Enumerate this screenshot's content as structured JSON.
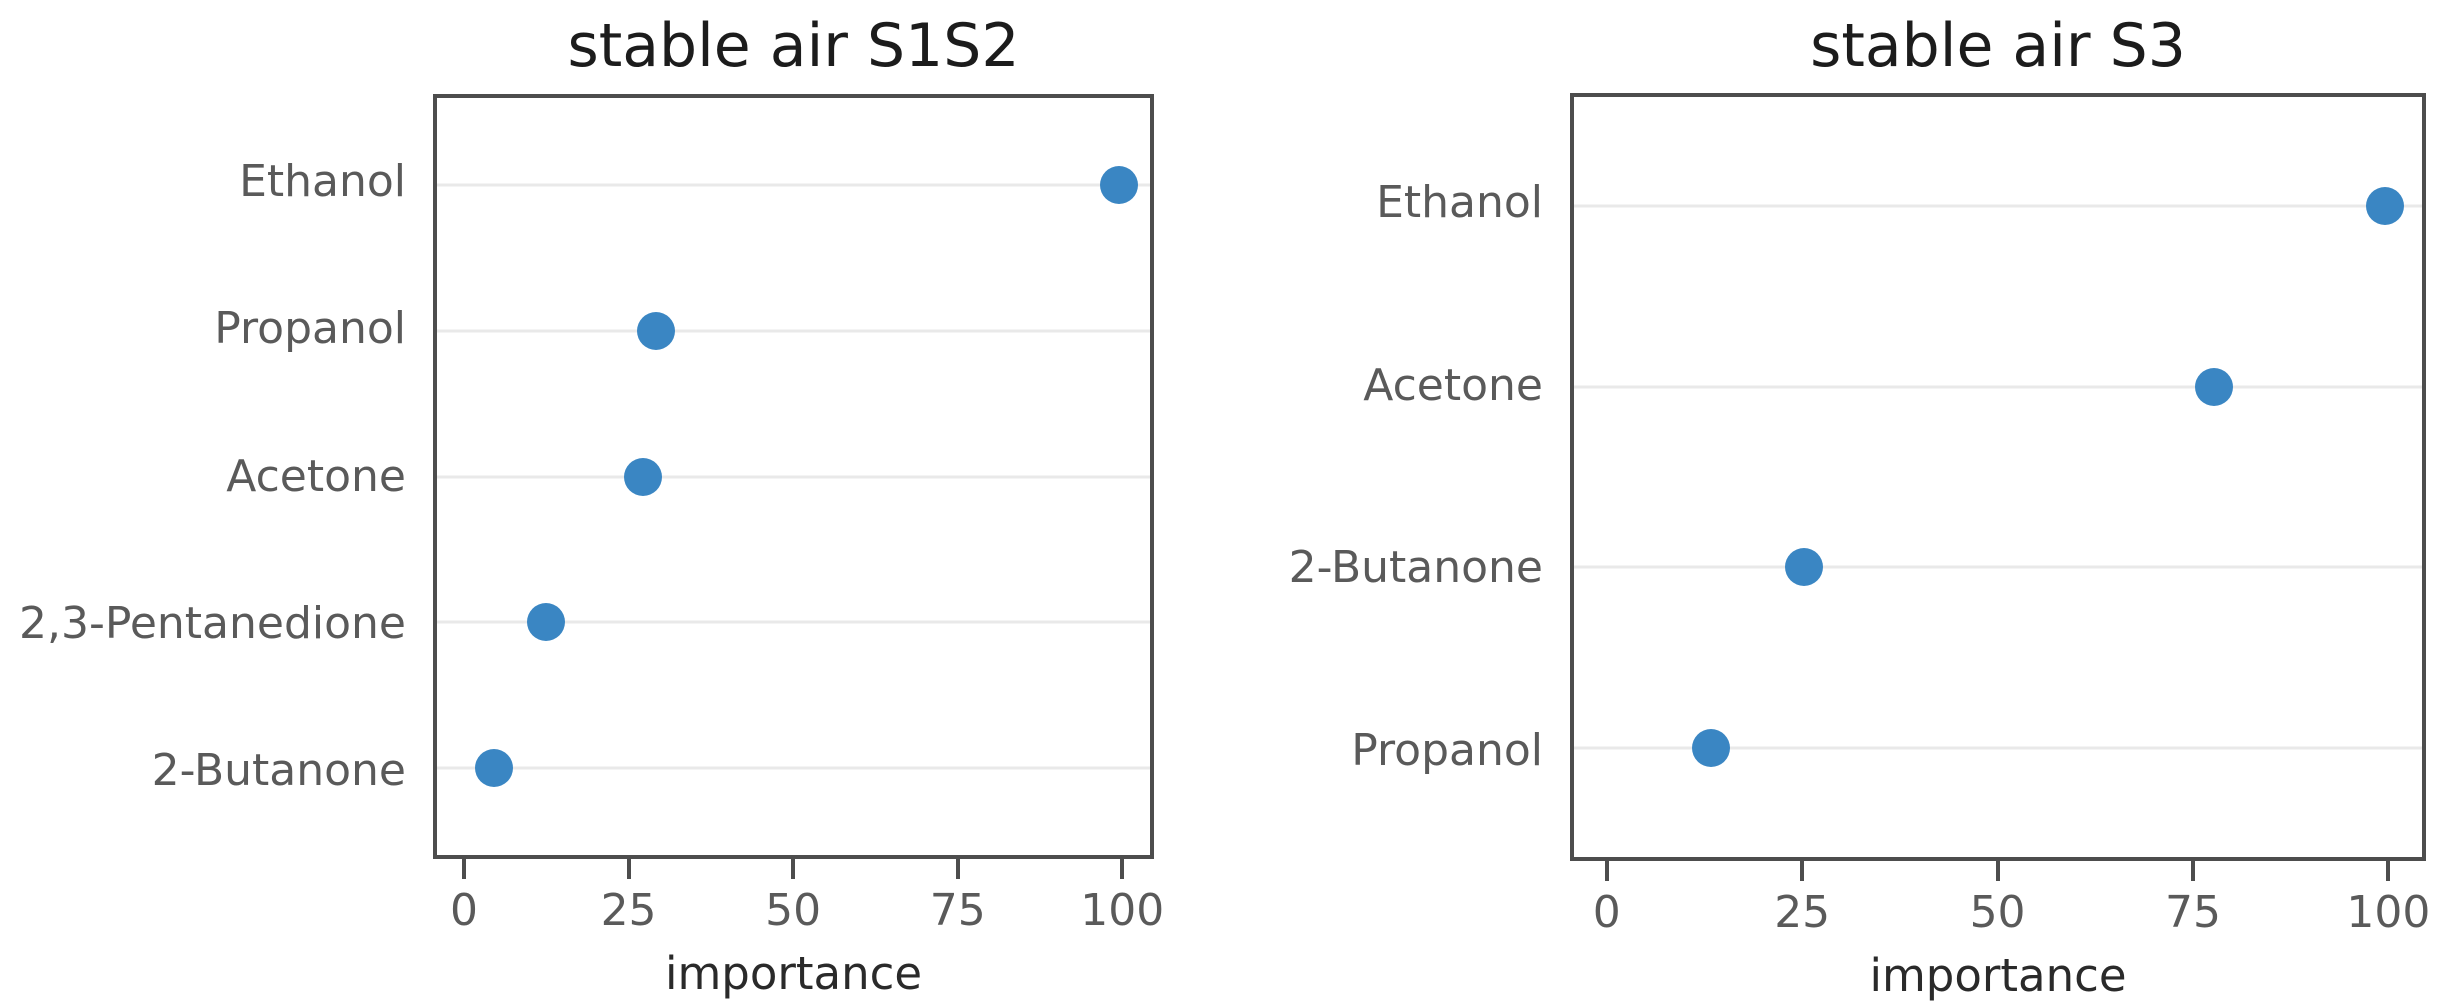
{
  "figure": {
    "background": "#ffffff",
    "dot_color": "#3a86c3",
    "grid_color": "#e9e9e9",
    "spine_color": "#4d4d4d",
    "title_color": "#1c1c1c",
    "tick_label_color": "#5a5a5a",
    "axis_label_color": "#2a2a2a"
  },
  "chart_data": [
    {
      "type": "scatter",
      "title": "stable air S1S2",
      "xlabel": "importance",
      "ylabel": "",
      "categories": [
        "Ethanol",
        "Propanol",
        "Acetone",
        "2,3-Pentanedione",
        "2-Butanone"
      ],
      "values": [
        100,
        29,
        27,
        12,
        4
      ],
      "xlim": [
        0,
        100
      ],
      "xticks": [
        0,
        25,
        50,
        75,
        100
      ],
      "grid": "horizontal-on",
      "legend": "none",
      "marker": "circle"
    },
    {
      "type": "scatter",
      "title": "stable air S3",
      "xlabel": "importance",
      "ylabel": "",
      "categories": [
        "Ethanol",
        "Acetone",
        "2-Butanone",
        "Propanol"
      ],
      "values": [
        100,
        78,
        25,
        13
      ],
      "xlim": [
        0,
        100
      ],
      "xticks": [
        0,
        25,
        50,
        75,
        100
      ],
      "grid": "horizontal-on",
      "legend": "none",
      "marker": "circle"
    }
  ]
}
